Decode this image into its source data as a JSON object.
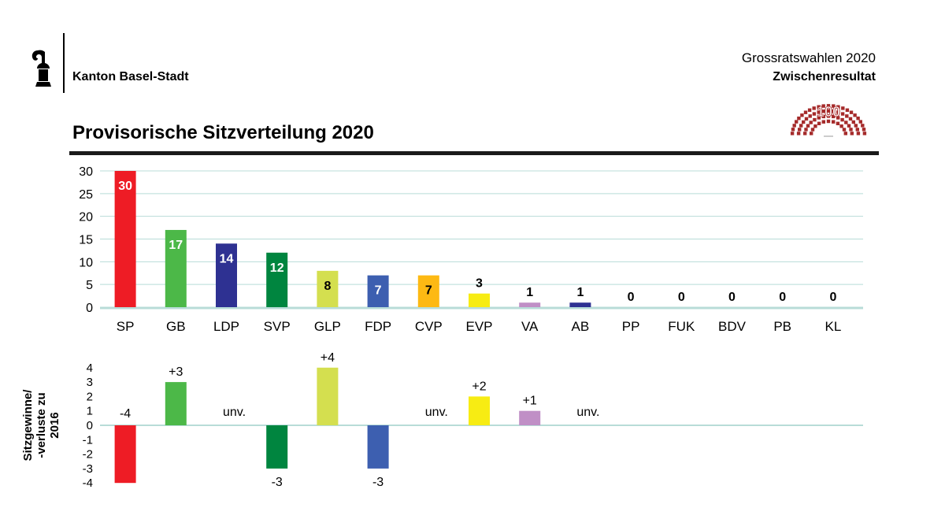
{
  "header": {
    "canton": "Kanton Basel-Stadt",
    "election_title": "Grossratswahlen 2020",
    "election_subtitle": "Zwischenresultat",
    "chart_title": "Provisorische Sitzverteilung 2020",
    "badge_number": "100"
  },
  "colors": {
    "SP": "#ee1c25",
    "GB": "#4cb848",
    "LDP": "#2e3192",
    "SVP": "#00853f",
    "GLP": "#d4df4f",
    "FDP": "#3d5fb0",
    "CVP": "#fdb913",
    "EVP": "#f7ec13",
    "VA": "#c08fc6",
    "AB": "#2e3192",
    "grid": "#b8dcd8",
    "parliament": "#a52a2a"
  },
  "chart_data": [
    {
      "type": "bar",
      "title": "Provisorische Sitzverteilung 2020",
      "categories": [
        "SP",
        "GB",
        "LDP",
        "SVP",
        "GLP",
        "FDP",
        "CVP",
        "EVP",
        "VA",
        "AB",
        "PP",
        "FUK",
        "BDV",
        "PB",
        "KL"
      ],
      "values": [
        30,
        17,
        14,
        12,
        8,
        7,
        7,
        3,
        1,
        1,
        0,
        0,
        0,
        0,
        0
      ],
      "data_labels": [
        "30",
        "17",
        "14",
        "12",
        "8",
        "7",
        "7",
        "3",
        "1",
        "1",
        "0",
        "0",
        "0",
        "0",
        "0"
      ],
      "ylim": [
        0,
        30
      ],
      "yticks": [
        "30",
        "25",
        "20",
        "15",
        "10",
        "5",
        "0"
      ],
      "xlabel": "",
      "ylabel": "",
      "grid": true
    },
    {
      "type": "bar",
      "title": "",
      "categories": [
        "SP",
        "GB",
        "LDP",
        "SVP",
        "GLP",
        "FDP",
        "CVP",
        "EVP",
        "VA",
        "AB"
      ],
      "values": [
        -4,
        3,
        0,
        -3,
        4,
        -3,
        0,
        2,
        1,
        0
      ],
      "data_labels": [
        "-4",
        "+3",
        "unv.",
        "-3",
        "+4",
        "-3",
        "unv.",
        "+2",
        "+1",
        "unv."
      ],
      "ylim": [
        -4,
        4
      ],
      "yticks": [
        "4",
        "3",
        "2",
        "1",
        "0",
        "-1",
        "-2",
        "-3",
        "-4"
      ],
      "ylabel_line1": "Sitzgewinne/",
      "ylabel_line2": "-verluste zu",
      "ylabel_line3": "2016",
      "grid": false
    }
  ]
}
